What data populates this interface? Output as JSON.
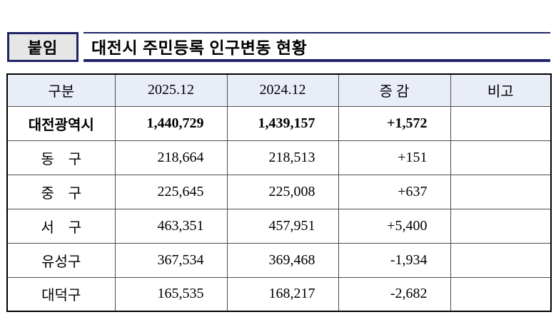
{
  "header": {
    "attachment_label": "붙임",
    "title": "대전시 주민등록 인구변동 현황"
  },
  "colors": {
    "navy": "#1f2468",
    "header_bg": "#e9edf8",
    "attach_bg": "#e6e6e6"
  },
  "table": {
    "columns": [
      "구분",
      "2025.12",
      "2024.12",
      "증 감",
      "비고"
    ],
    "rows": [
      {
        "region": "대전광역시",
        "v2025": "1,440,729",
        "v2024": "1,439,157",
        "change": "+1,572",
        "note": "",
        "emphasis": true
      },
      {
        "region": "동　구",
        "v2025": "218,664",
        "v2024": "218,513",
        "change": "+151",
        "note": "",
        "emphasis": false
      },
      {
        "region": "중　구",
        "v2025": "225,645",
        "v2024": "225,008",
        "change": "+637",
        "note": "",
        "emphasis": false
      },
      {
        "region": "서　구",
        "v2025": "463,351",
        "v2024": "457,951",
        "change": "+5,400",
        "note": "",
        "emphasis": false
      },
      {
        "region": "유성구",
        "v2025": "367,534",
        "v2024": "369,468",
        "change": "-1,934",
        "note": "",
        "emphasis": false
      },
      {
        "region": "대덕구",
        "v2025": "165,535",
        "v2024": "168,217",
        "change": "-2,682",
        "note": "",
        "emphasis": false
      }
    ]
  }
}
